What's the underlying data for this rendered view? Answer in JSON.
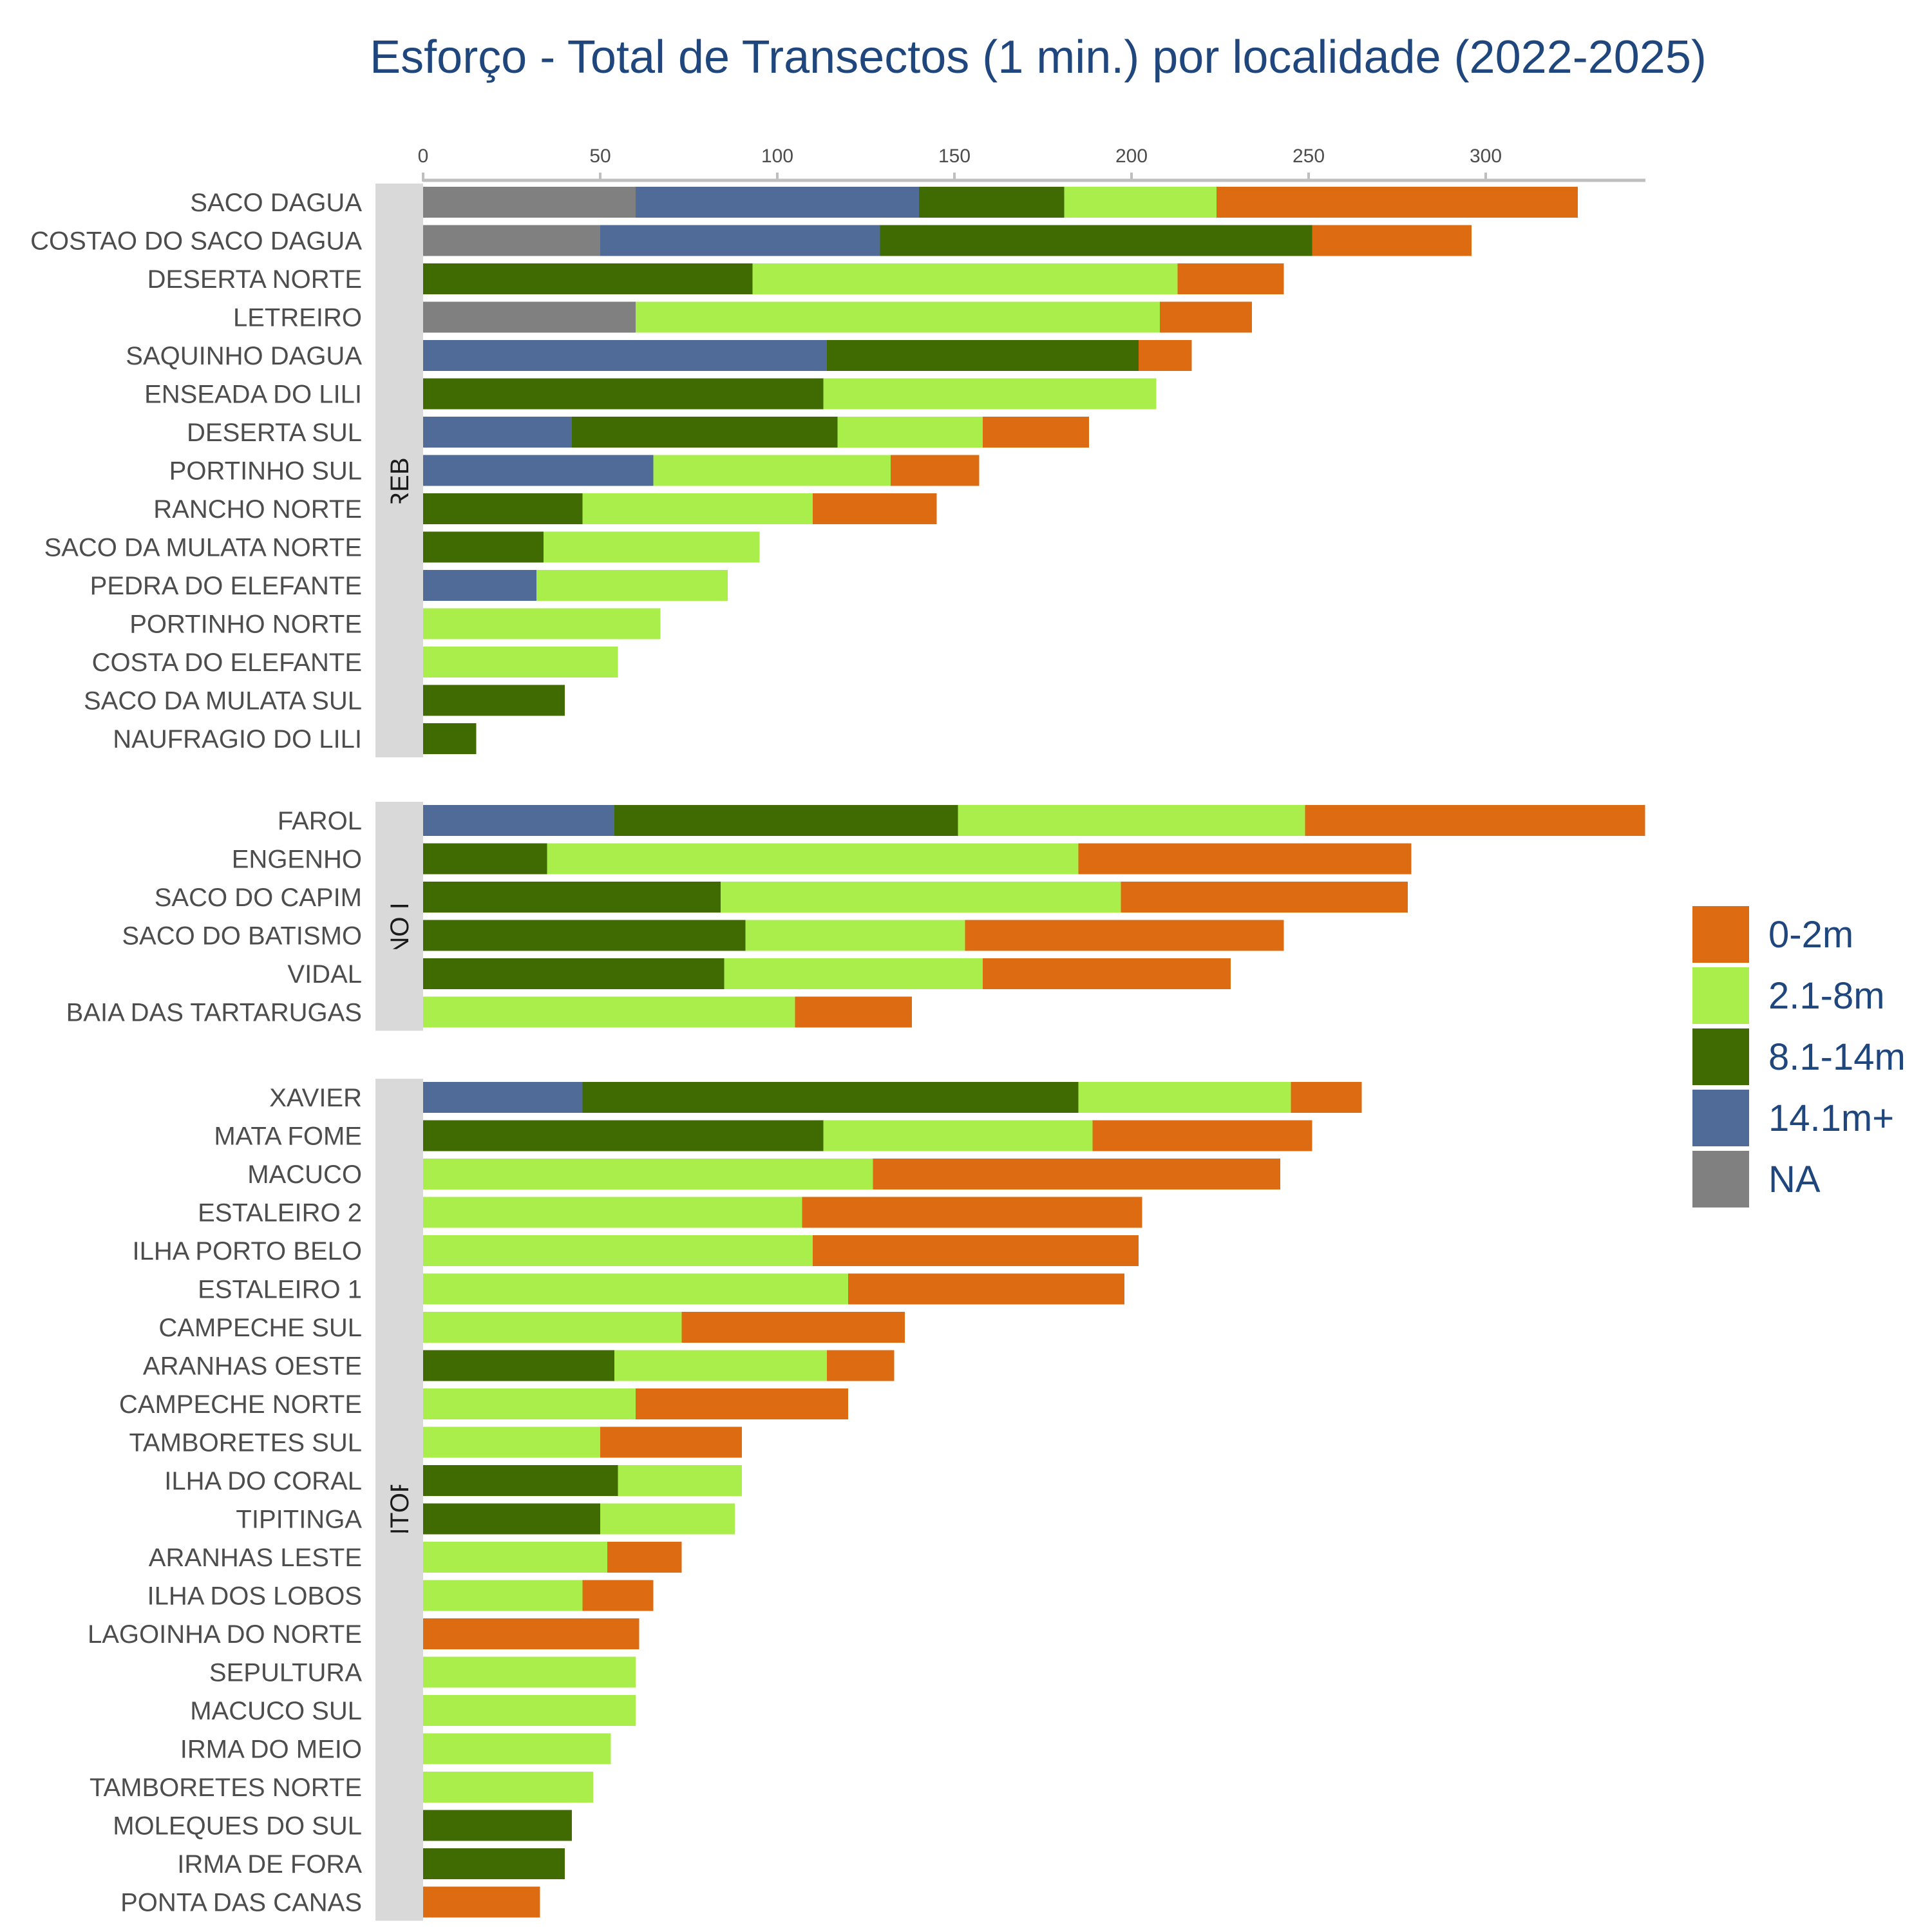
{
  "chart_data": {
    "type": "bar",
    "orientation": "horizontal",
    "stacked": true,
    "title": "Esforço - Total de Transectos (1 min.) por localidade (2022-2025)",
    "xlabel": "",
    "ylabel": "",
    "xlim": [
      0,
      345
    ],
    "xticks": [
      0,
      50,
      100,
      150,
      200,
      250,
      300
    ],
    "grid": false,
    "legend_position": "right",
    "stack_order": [
      "NA",
      "14.1m+",
      "8.1-14m",
      "2.1-8m",
      "0-2m"
    ],
    "legend": [
      {
        "name": "0-2m",
        "color": "#dd6b12"
      },
      {
        "name": "2.1-8m",
        "color": "#aaee4b"
      },
      {
        "name": "8.1-14m",
        "color": "#406b02"
      },
      {
        "name": "14.1m+",
        "color": "#516b98"
      },
      {
        "name": "NA",
        "color": "#808080"
      }
    ],
    "panels": [
      {
        "label": "REBIO",
        "rows": [
          {
            "name": "SACO DAGUA",
            "values": {
              "NA": 60,
              "14.1m+": 80,
              "8.1-14m": 41,
              "2.1-8m": 43,
              "0-2m": 102
            }
          },
          {
            "name": "COSTAO DO SACO DAGUA",
            "values": {
              "NA": 50,
              "14.1m+": 79,
              "8.1-14m": 122,
              "2.1-8m": 0,
              "0-2m": 45
            }
          },
          {
            "name": "DESERTA NORTE",
            "values": {
              "NA": 0,
              "14.1m+": 0,
              "8.1-14m": 93,
              "2.1-8m": 120,
              "0-2m": 30
            }
          },
          {
            "name": "LETREIRO",
            "values": {
              "NA": 60,
              "14.1m+": 0,
              "8.1-14m": 0,
              "2.1-8m": 148,
              "0-2m": 26
            }
          },
          {
            "name": "SAQUINHO DAGUA",
            "values": {
              "NA": 0,
              "14.1m+": 114,
              "8.1-14m": 88,
              "2.1-8m": 0,
              "0-2m": 15
            }
          },
          {
            "name": "ENSEADA DO LILI",
            "values": {
              "NA": 0,
              "14.1m+": 0,
              "8.1-14m": 113,
              "2.1-8m": 94,
              "0-2m": 0
            }
          },
          {
            "name": "DESERTA SUL",
            "values": {
              "NA": 0,
              "14.1m+": 42,
              "8.1-14m": 75,
              "2.1-8m": 41,
              "0-2m": 30
            }
          },
          {
            "name": "PORTINHO SUL",
            "values": {
              "NA": 0,
              "14.1m+": 65,
              "8.1-14m": 0,
              "2.1-8m": 67,
              "0-2m": 25
            }
          },
          {
            "name": "RANCHO NORTE",
            "values": {
              "NA": 0,
              "14.1m+": 0,
              "8.1-14m": 45,
              "2.1-8m": 65,
              "0-2m": 35
            }
          },
          {
            "name": "SACO DA MULATA NORTE",
            "values": {
              "NA": 0,
              "14.1m+": 0,
              "8.1-14m": 34,
              "2.1-8m": 61,
              "0-2m": 0
            }
          },
          {
            "name": "PEDRA DO ELEFANTE",
            "values": {
              "NA": 0,
              "14.1m+": 32,
              "8.1-14m": 0,
              "2.1-8m": 54,
              "0-2m": 0
            }
          },
          {
            "name": "PORTINHO NORTE",
            "values": {
              "NA": 0,
              "14.1m+": 0,
              "8.1-14m": 0,
              "2.1-8m": 67,
              "0-2m": 0
            }
          },
          {
            "name": "COSTA DO ELEFANTE",
            "values": {
              "NA": 0,
              "14.1m+": 0,
              "8.1-14m": 0,
              "2.1-8m": 55,
              "0-2m": 0
            }
          },
          {
            "name": "SACO DA MULATA SUL",
            "values": {
              "NA": 0,
              "14.1m+": 0,
              "8.1-14m": 40,
              "2.1-8m": 0,
              "0-2m": 0
            }
          },
          {
            "name": "NAUFRAGIO DO LILI",
            "values": {
              "NA": 0,
              "14.1m+": 0,
              "8.1-14m": 15,
              "2.1-8m": 0,
              "0-2m": 0
            }
          }
        ]
      },
      {
        "label": "ENTORNO IMEDIATO",
        "rows": [
          {
            "name": "FAROL",
            "values": {
              "NA": 0,
              "14.1m+": 54,
              "8.1-14m": 97,
              "2.1-8m": 98,
              "0-2m": 96
            }
          },
          {
            "name": "ENGENHO",
            "values": {
              "NA": 0,
              "14.1m+": 0,
              "8.1-14m": 35,
              "2.1-8m": 150,
              "0-2m": 94
            }
          },
          {
            "name": "SACO DO CAPIM",
            "values": {
              "NA": 0,
              "14.1m+": 0,
              "8.1-14m": 84,
              "2.1-8m": 113,
              "0-2m": 81
            }
          },
          {
            "name": "SACO DO BATISMO",
            "values": {
              "NA": 0,
              "14.1m+": 0,
              "8.1-14m": 91,
              "2.1-8m": 62,
              "0-2m": 90
            }
          },
          {
            "name": "VIDAL",
            "values": {
              "NA": 0,
              "14.1m+": 0,
              "8.1-14m": 85,
              "2.1-8m": 73,
              "0-2m": 70
            }
          },
          {
            "name": "BAIA DAS TARTARUGAS",
            "values": {
              "NA": 0,
              "14.1m+": 0,
              "8.1-14m": 0,
              "2.1-8m": 105,
              "0-2m": 33
            }
          }
        ]
      },
      {
        "label": "ENTORNO",
        "rows": [
          {
            "name": "XAVIER",
            "values": {
              "NA": 0,
              "14.1m+": 45,
              "8.1-14m": 140,
              "2.1-8m": 60,
              "0-2m": 20
            }
          },
          {
            "name": "MATA FOME",
            "values": {
              "NA": 0,
              "14.1m+": 0,
              "8.1-14m": 113,
              "2.1-8m": 76,
              "0-2m": 62
            }
          },
          {
            "name": "MACUCO",
            "values": {
              "NA": 0,
              "14.1m+": 0,
              "8.1-14m": 0,
              "2.1-8m": 127,
              "0-2m": 115
            }
          },
          {
            "name": "ESTALEIRO 2",
            "values": {
              "NA": 0,
              "14.1m+": 0,
              "8.1-14m": 0,
              "2.1-8m": 107,
              "0-2m": 96
            }
          },
          {
            "name": "ILHA PORTO BELO",
            "values": {
              "NA": 0,
              "14.1m+": 0,
              "8.1-14m": 0,
              "2.1-8m": 110,
              "0-2m": 92
            }
          },
          {
            "name": "ESTALEIRO 1",
            "values": {
              "NA": 0,
              "14.1m+": 0,
              "8.1-14m": 0,
              "2.1-8m": 120,
              "0-2m": 78
            }
          },
          {
            "name": "CAMPECHE SUL",
            "values": {
              "NA": 0,
              "14.1m+": 0,
              "8.1-14m": 0,
              "2.1-8m": 73,
              "0-2m": 63
            }
          },
          {
            "name": "ARANHAS OESTE",
            "values": {
              "NA": 0,
              "14.1m+": 0,
              "8.1-14m": 54,
              "2.1-8m": 60,
              "0-2m": 19
            }
          },
          {
            "name": "CAMPECHE NORTE",
            "values": {
              "NA": 0,
              "14.1m+": 0,
              "8.1-14m": 0,
              "2.1-8m": 60,
              "0-2m": 60
            }
          },
          {
            "name": "TAMBORETES SUL",
            "values": {
              "NA": 0,
              "14.1m+": 0,
              "8.1-14m": 0,
              "2.1-8m": 50,
              "0-2m": 40
            }
          },
          {
            "name": "ILHA DO CORAL",
            "values": {
              "NA": 0,
              "14.1m+": 0,
              "8.1-14m": 55,
              "2.1-8m": 35,
              "0-2m": 0
            }
          },
          {
            "name": "TIPITINGA",
            "values": {
              "NA": 0,
              "14.1m+": 0,
              "8.1-14m": 50,
              "2.1-8m": 38,
              "0-2m": 0
            }
          },
          {
            "name": "ARANHAS LESTE",
            "values": {
              "NA": 0,
              "14.1m+": 0,
              "8.1-14m": 0,
              "2.1-8m": 52,
              "0-2m": 21
            }
          },
          {
            "name": "ILHA DOS LOBOS",
            "values": {
              "NA": 0,
              "14.1m+": 0,
              "8.1-14m": 0,
              "2.1-8m": 45,
              "0-2m": 20
            }
          },
          {
            "name": "LAGOINHA DO NORTE",
            "values": {
              "NA": 0,
              "14.1m+": 0,
              "8.1-14m": 0,
              "2.1-8m": 0,
              "0-2m": 61
            }
          },
          {
            "name": "SEPULTURA",
            "values": {
              "NA": 0,
              "14.1m+": 0,
              "8.1-14m": 0,
              "2.1-8m": 60,
              "0-2m": 0
            }
          },
          {
            "name": "MACUCO SUL",
            "values": {
              "NA": 0,
              "14.1m+": 0,
              "8.1-14m": 0,
              "2.1-8m": 60,
              "0-2m": 0
            }
          },
          {
            "name": "IRMA DO MEIO",
            "values": {
              "NA": 0,
              "14.1m+": 0,
              "8.1-14m": 0,
              "2.1-8m": 53,
              "0-2m": 0
            }
          },
          {
            "name": "TAMBORETES NORTE",
            "values": {
              "NA": 0,
              "14.1m+": 0,
              "8.1-14m": 0,
              "2.1-8m": 48,
              "0-2m": 0
            }
          },
          {
            "name": "MOLEQUES DO SUL",
            "values": {
              "NA": 0,
              "14.1m+": 0,
              "8.1-14m": 42,
              "2.1-8m": 0,
              "0-2m": 0
            }
          },
          {
            "name": "IRMA DE FORA",
            "values": {
              "NA": 0,
              "14.1m+": 0,
              "8.1-14m": 40,
              "2.1-8m": 0,
              "0-2m": 0
            }
          },
          {
            "name": "PONTA DAS CANAS",
            "values": {
              "NA": 0,
              "14.1m+": 0,
              "8.1-14m": 0,
              "2.1-8m": 0,
              "0-2m": 33
            }
          }
        ]
      }
    ]
  }
}
